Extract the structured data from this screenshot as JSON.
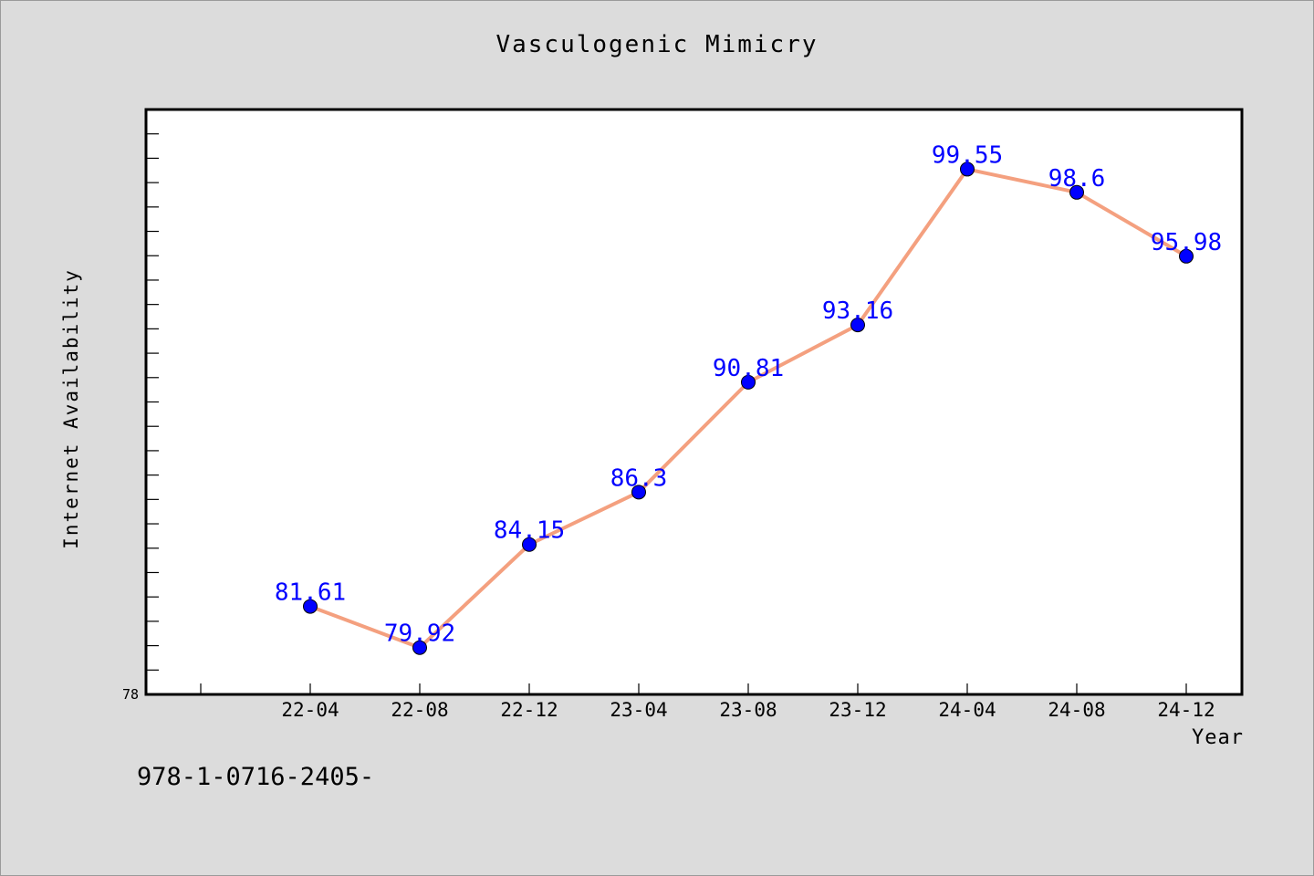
{
  "chart_data": {
    "type": "line",
    "title": "Vasculogenic Mimicry",
    "xlabel": "Year",
    "ylabel": "Internet Availability",
    "categories": [
      "22-04",
      "22-08",
      "22-12",
      "23-04",
      "23-08",
      "23-12",
      "24-04",
      "24-08",
      "24-12"
    ],
    "series": [
      {
        "values": [
          81.61,
          79.92,
          84.15,
          86.3,
          90.81,
          93.16,
          99.55,
          98.6,
          95.98
        ],
        "labels": [
          "81.61",
          "79.92",
          "84.15",
          "86.3",
          "90.81",
          "93.16",
          "99.55",
          "98.6",
          "95.98"
        ]
      }
    ],
    "ylim": [
      78,
      102
    ],
    "ytick_labels": [
      "78"
    ],
    "grid": false,
    "colors": {
      "line": "#f4a07f",
      "marker": "#0000ff",
      "label": "#0000ff"
    }
  },
  "footnote": "978-1-0716-2405-"
}
